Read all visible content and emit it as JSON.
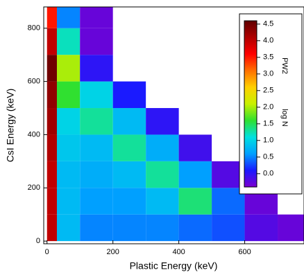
{
  "chart_data": {
    "type": "heatmap",
    "x_label": "Plastic Energy (keV)",
    "y_label": "CsI Energy (keV)",
    "xlim": [
      -10,
      780
    ],
    "ylim": [
      -10,
      880
    ],
    "xticks": [
      0,
      200,
      400,
      600
    ],
    "yticks": [
      0,
      200,
      400,
      600,
      800
    ],
    "xbins": [
      0,
      30,
      100,
      200,
      300,
      400,
      500,
      600,
      700,
      800
    ],
    "ybins": [
      0,
      100,
      200,
      300,
      400,
      500,
      600,
      700,
      800,
      880
    ],
    "z": [
      [
        4.0,
        0.8,
        0.5,
        0.5,
        0.5,
        0.4,
        0.3,
        -0.2,
        -0.3
      ],
      [
        4.0,
        0.8,
        0.6,
        0.6,
        0.8,
        1.4,
        0.4,
        -0.3,
        null
      ],
      [
        4.0,
        0.8,
        0.7,
        0.8,
        1.3,
        0.6,
        -0.2,
        null,
        null
      ],
      [
        4.1,
        0.9,
        0.8,
        1.3,
        0.7,
        -0.1,
        null,
        null,
        null
      ],
      [
        4.2,
        1.0,
        1.3,
        0.8,
        0.0,
        null,
        null,
        null,
        null
      ],
      [
        4.3,
        1.6,
        1.0,
        0.1,
        null,
        null,
        null,
        null,
        null
      ],
      [
        4.5,
        2.0,
        0.0,
        null,
        null,
        null,
        null,
        null,
        null
      ],
      [
        4.0,
        1.2,
        -0.3,
        null,
        null,
        null,
        null,
        null,
        null
      ],
      [
        3.5,
        0.5,
        -0.3,
        null,
        null,
        null,
        null,
        null,
        null
      ]
    ],
    "colorbar_title": "PW2",
    "colorbar_label": "log N",
    "zlim": [
      -0.4,
      4.6
    ],
    "zticks": [
      {
        "value": 0,
        "label": "0.0"
      },
      0.5,
      {
        "value": 1,
        "label": "1.0"
      },
      1.5,
      {
        "value": 2,
        "label": "2.0"
      },
      2.5,
      {
        "value": 3,
        "label": "3.0"
      },
      3.5,
      {
        "value": 4,
        "label": "4.0"
      },
      4.5
    ],
    "colormap": [
      "#7a00d0",
      "#1a1aff",
      "#00a0ff",
      "#00e0e0",
      "#30e030",
      "#c8f000",
      "#ffd000",
      "#ff7000",
      "#ff0000",
      "#b00000",
      "#600000"
    ]
  }
}
